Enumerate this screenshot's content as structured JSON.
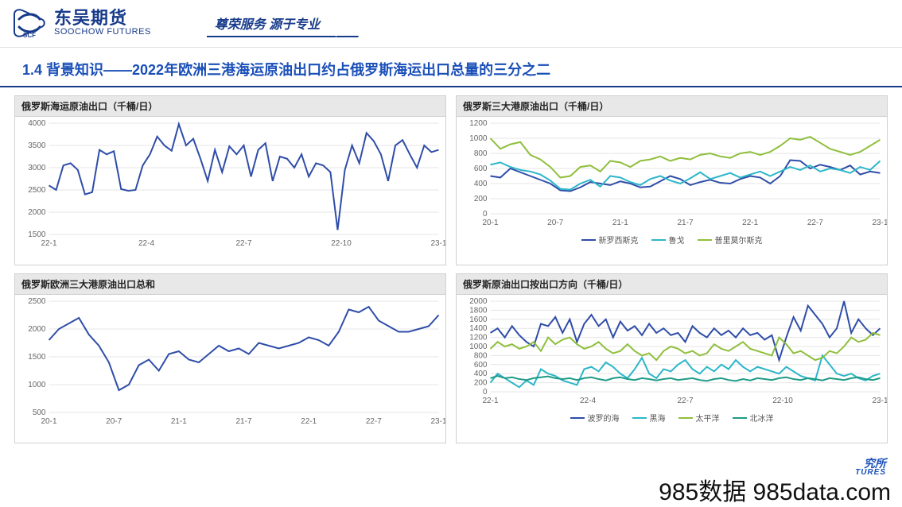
{
  "header": {
    "logo_cn": "东吴期货",
    "logo_en": "SOOCHOW FUTURES",
    "logo_mark": "SCF",
    "slogan": "尊荣服务 源于专业"
  },
  "title": "1.4 背景知识——2022年欧洲三港海运原油出口约占俄罗斯海运出口总量的三分之二",
  "colors": {
    "brand": "#173a8a",
    "title": "#1a4fb8",
    "grid": "#e6e6e6",
    "axis": "#bbbbbb",
    "panel_header_bg": "#e8e8e8",
    "series_blue": "#2f4da8",
    "series_cyan": "#2db6c9",
    "series_green": "#8fbf3c",
    "series_teal": "#1f9b87"
  },
  "charts": [
    {
      "id": "c1",
      "title": "俄罗斯海运原油出口（千桶/日）",
      "type": "line",
      "ylim": [
        1500,
        4000
      ],
      "ytick_step": 500,
      "x_labels": [
        "22-1",
        "22-4",
        "22-7",
        "22-10",
        "23-1"
      ],
      "x_count": 55,
      "series": [
        {
          "name": "main",
          "color": "#2f4da8",
          "values": [
            2600,
            2500,
            3050,
            3100,
            2950,
            2400,
            2450,
            3400,
            3300,
            3370,
            2520,
            2480,
            2500,
            3050,
            3300,
            3700,
            3500,
            3380,
            3980,
            3500,
            3650,
            3200,
            2700,
            3400,
            2900,
            3480,
            3300,
            3500,
            2800,
            3400,
            3550,
            2700,
            3250,
            3200,
            3000,
            3300,
            2800,
            3100,
            3050,
            2900,
            1600,
            2950,
            3500,
            3100,
            3780,
            3600,
            3300,
            2700,
            3500,
            3620,
            3300,
            3000,
            3500,
            3350,
            3400
          ]
        }
      ]
    },
    {
      "id": "c2",
      "title": "俄罗斯三大港原油出口（千桶/日）",
      "type": "line",
      "ylim": [
        0,
        1200
      ],
      "ytick_step": 200,
      "x_labels": [
        "20-1",
        "20-7",
        "21-1",
        "21-7",
        "22-1",
        "22-7",
        "23-1"
      ],
      "x_count": 40,
      "series": [
        {
          "name": "新罗西斯克",
          "color": "#2f4da8",
          "values": [
            500,
            480,
            600,
            550,
            500,
            450,
            400,
            310,
            300,
            350,
            420,
            400,
            380,
            430,
            400,
            350,
            360,
            430,
            500,
            460,
            380,
            420,
            450,
            410,
            400,
            460,
            500,
            480,
            400,
            500,
            710,
            700,
            600,
            650,
            620,
            580,
            640,
            520,
            560,
            540
          ]
        },
        {
          "name": "鲁戈",
          "color": "#2db6c9",
          "values": [
            650,
            680,
            620,
            580,
            560,
            520,
            440,
            330,
            320,
            400,
            450,
            360,
            500,
            480,
            420,
            380,
            460,
            500,
            440,
            400,
            470,
            550,
            460,
            500,
            540,
            480,
            520,
            560,
            500,
            560,
            620,
            580,
            640,
            560,
            600,
            580,
            540,
            620,
            580,
            700
          ]
        },
        {
          "name": "普里莫尔斯克",
          "color": "#8fbf3c",
          "values": [
            1000,
            860,
            920,
            950,
            780,
            720,
            620,
            480,
            500,
            620,
            640,
            560,
            700,
            680,
            620,
            700,
            720,
            760,
            700,
            740,
            720,
            780,
            800,
            760,
            740,
            800,
            820,
            780,
            820,
            900,
            1000,
            980,
            1020,
            940,
            860,
            820,
            780,
            820,
            900,
            980
          ]
        }
      ],
      "legend": [
        "新罗西斯克",
        "鲁戈",
        "普里莫尔斯克"
      ]
    },
    {
      "id": "c3",
      "title": "俄罗斯欧洲三大港原油出口总和",
      "type": "line",
      "ylim": [
        500,
        2500
      ],
      "ytick_step": 500,
      "x_labels": [
        "20-1",
        "20-7",
        "21-1",
        "21-7",
        "22-1",
        "22-7",
        "23-1"
      ],
      "x_count": 40,
      "series": [
        {
          "name": "sum",
          "color": "#2f4da8",
          "values": [
            1800,
            2000,
            2100,
            2200,
            1900,
            1700,
            1400,
            900,
            1000,
            1350,
            1450,
            1250,
            1550,
            1600,
            1450,
            1400,
            1550,
            1700,
            1600,
            1650,
            1550,
            1750,
            1700,
            1650,
            1700,
            1750,
            1850,
            1800,
            1700,
            1950,
            2350,
            2300,
            2400,
            2150,
            2050,
            1950,
            1950,
            2000,
            2050,
            2250
          ]
        }
      ]
    },
    {
      "id": "c4",
      "title": "俄罗斯原油出口按出口方向（千桶/日）",
      "type": "line",
      "ylim": [
        0,
        2000
      ],
      "ytick_step": 200,
      "x_labels": [
        "22-1",
        "22-4",
        "22-7",
        "22-10",
        "23-1"
      ],
      "x_count": 55,
      "series": [
        {
          "name": "波罗的海",
          "color": "#2f4da8",
          "values": [
            1300,
            1400,
            1200,
            1450,
            1250,
            1100,
            1000,
            1500,
            1450,
            1650,
            1300,
            1600,
            1100,
            1500,
            1700,
            1450,
            1600,
            1200,
            1550,
            1350,
            1450,
            1250,
            1500,
            1300,
            1400,
            1250,
            1300,
            1100,
            1450,
            1300,
            1200,
            1400,
            1250,
            1350,
            1200,
            1400,
            1250,
            1300,
            1150,
            1250,
            700,
            1200,
            1650,
            1350,
            1900,
            1700,
            1500,
            1200,
            1400,
            2000,
            1300,
            1600,
            1400,
            1250,
            1400
          ]
        },
        {
          "name": "黑海",
          "color": "#2db6c9",
          "values": [
            200,
            400,
            300,
            200,
            100,
            250,
            150,
            500,
            400,
            350,
            250,
            200,
            150,
            500,
            550,
            450,
            650,
            550,
            400,
            300,
            500,
            750,
            400,
            300,
            500,
            450,
            600,
            700,
            500,
            400,
            550,
            450,
            600,
            500,
            700,
            550,
            450,
            550,
            500,
            450,
            400,
            550,
            450,
            350,
            300,
            250,
            800,
            600,
            400,
            350,
            400,
            300,
            250,
            350,
            400
          ]
        },
        {
          "name": "太平洋",
          "color": "#8fbf3c",
          "values": [
            950,
            1100,
            1000,
            1050,
            950,
            1000,
            1100,
            900,
            1200,
            1050,
            1150,
            1200,
            1050,
            950,
            1000,
            1100,
            950,
            850,
            900,
            1050,
            900,
            800,
            850,
            700,
            900,
            1000,
            950,
            850,
            900,
            800,
            850,
            1050,
            950,
            900,
            1000,
            1100,
            950,
            900,
            850,
            800,
            1200,
            1050,
            850,
            900,
            800,
            700,
            750,
            900,
            850,
            1000,
            1200,
            1100,
            1150,
            1300,
            1250
          ]
        },
        {
          "name": "北冰洋",
          "color": "#1f9b87",
          "values": [
            300,
            350,
            300,
            320,
            280,
            260,
            300,
            320,
            340,
            300,
            280,
            300,
            260,
            300,
            320,
            280,
            250,
            300,
            320,
            280,
            260,
            300,
            280,
            250,
            280,
            300,
            260,
            280,
            300,
            260,
            240,
            280,
            300,
            260,
            240,
            280,
            250,
            300,
            280,
            260,
            300,
            320,
            280,
            260,
            300,
            280,
            250,
            300,
            280,
            260,
            300,
            320,
            280,
            260,
            300
          ]
        }
      ],
      "legend": [
        "波罗的海",
        "黑海",
        "太平洋",
        "北冰洋"
      ]
    }
  ],
  "footer": {
    "brand_cn": "究所",
    "brand_en": "TURES"
  },
  "watermark": "985数据 985data.com"
}
